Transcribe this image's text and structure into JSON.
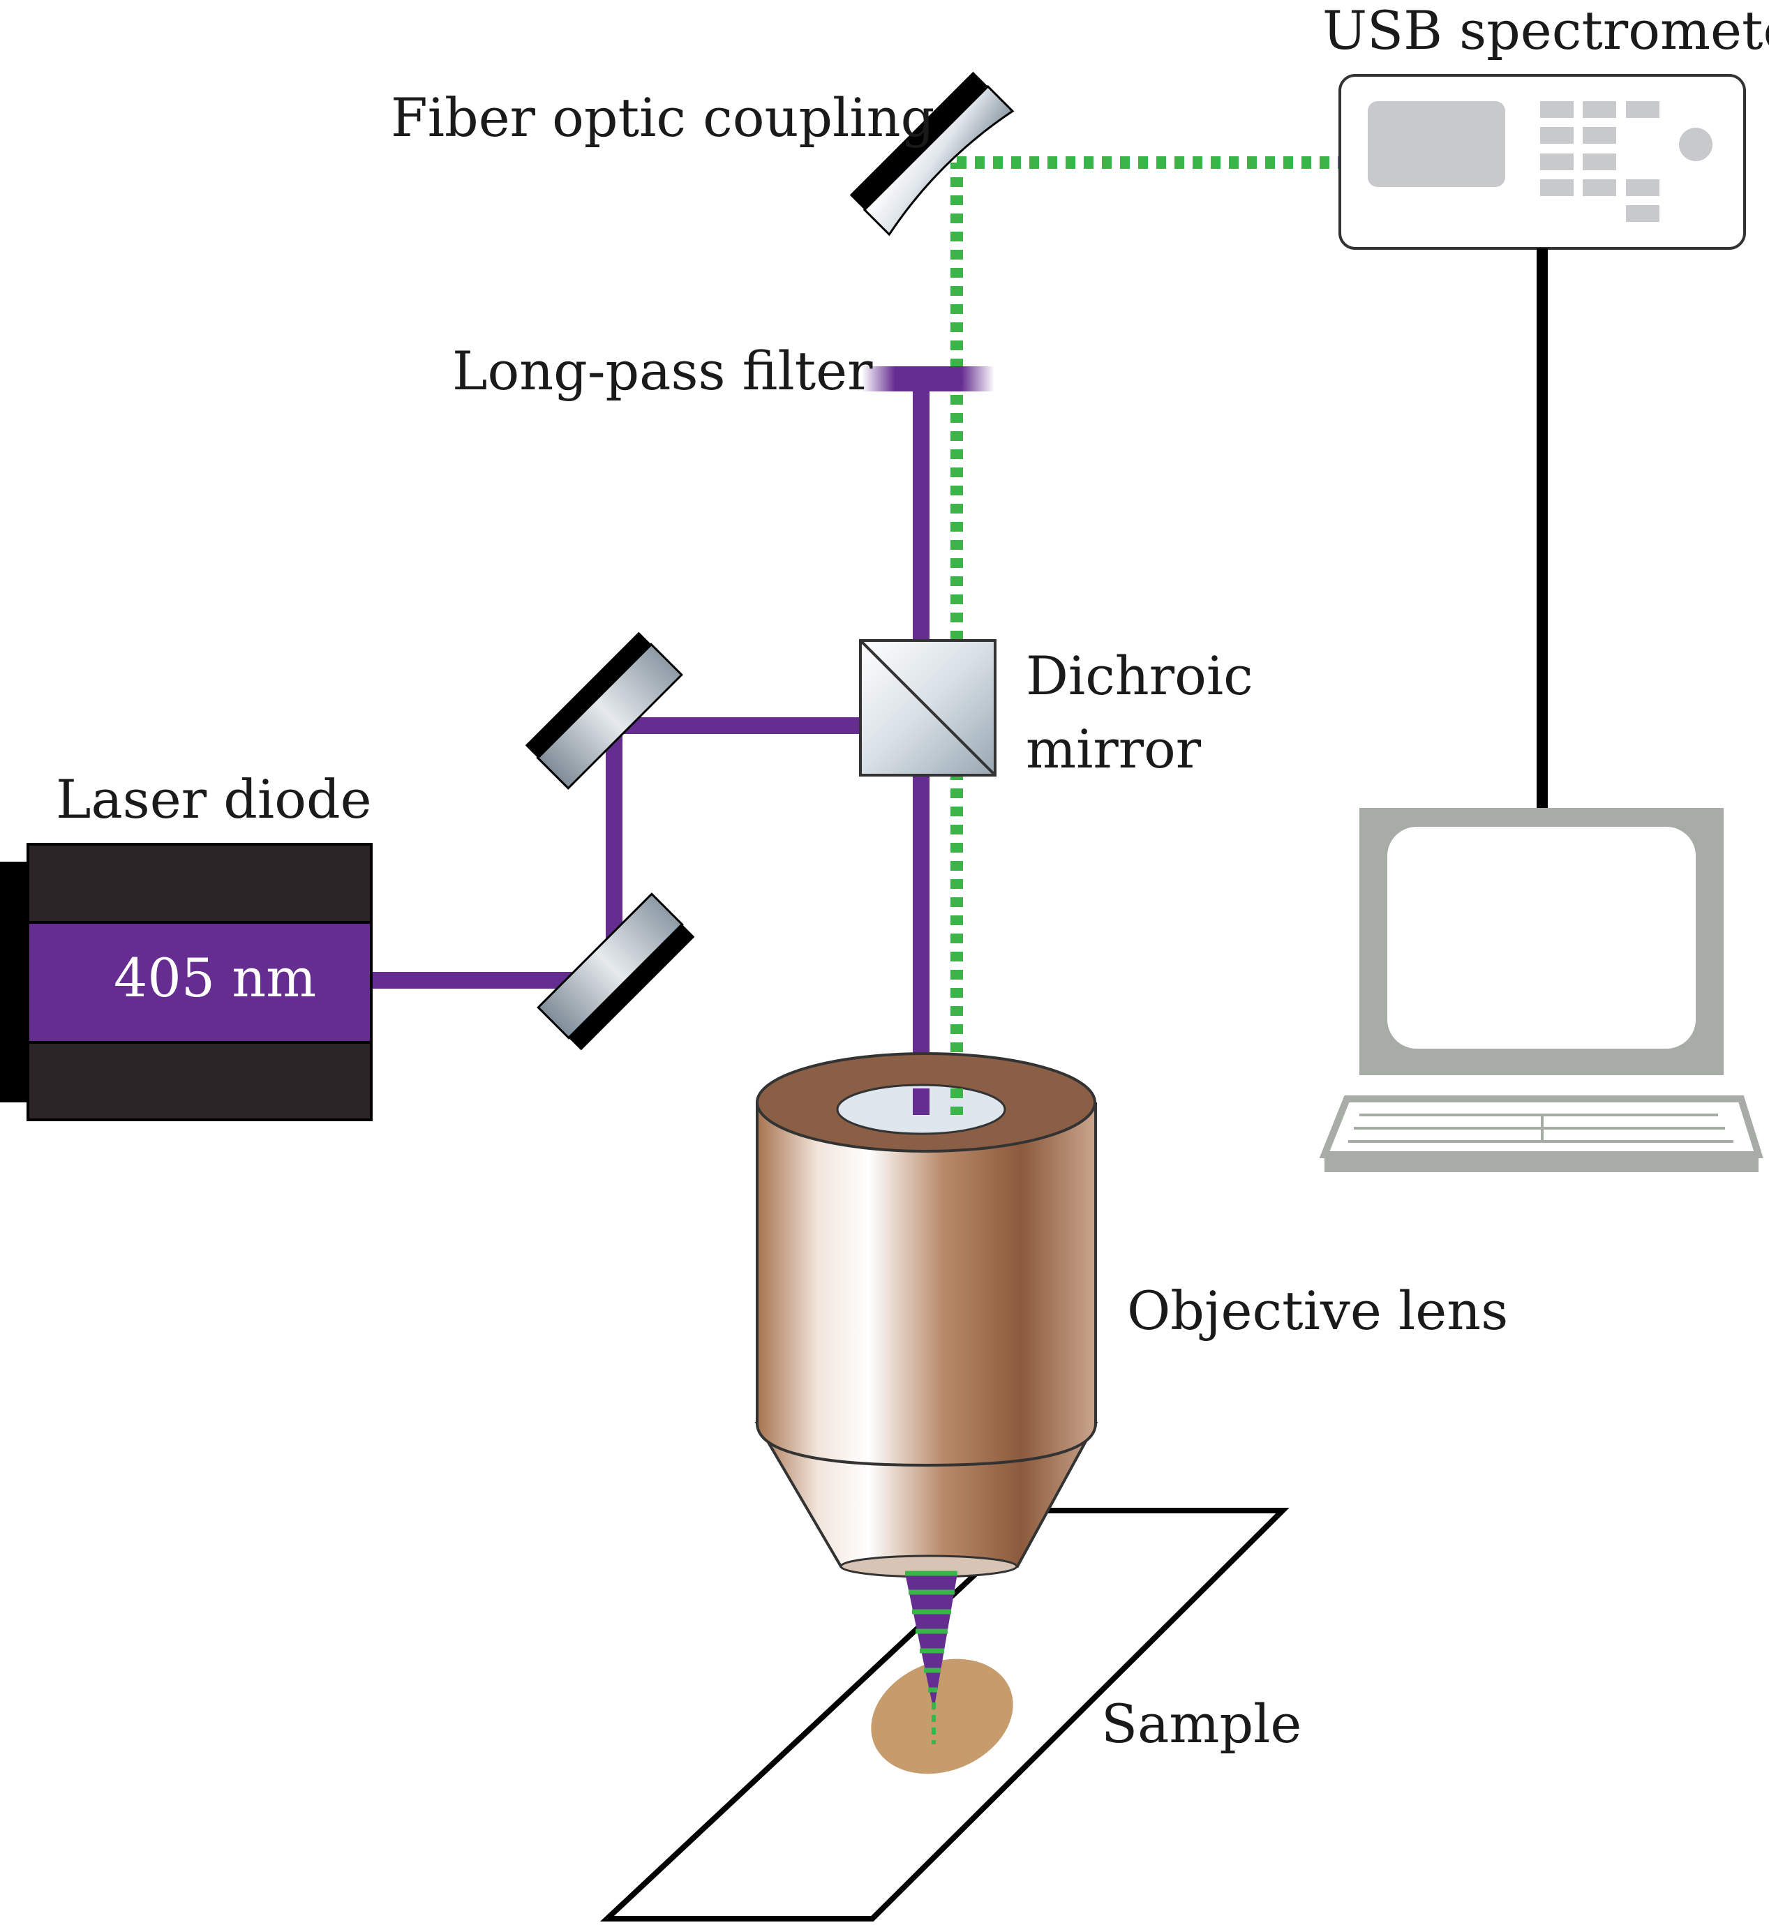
{
  "labels": {
    "usb_spectrometer": "USB spectrometer",
    "fiber_optic_coupling": "Fiber optic coupling",
    "long_pass_filter": "Long-pass filter",
    "dichroic_line1": "Dichroic",
    "dichroic_line2": "mirror",
    "laser_diode": "Laser diode",
    "wavelength": "405 nm",
    "objective_lens": "Objective lens",
    "sample": "Sample"
  },
  "colors": {
    "excitation_beam": "#662d91",
    "emission_beam": "#39b54a",
    "laser_body": "#2b2528",
    "objective": "#8b5a3c",
    "sample_spot": "#c69c6d",
    "computer": "#a7aca7"
  }
}
